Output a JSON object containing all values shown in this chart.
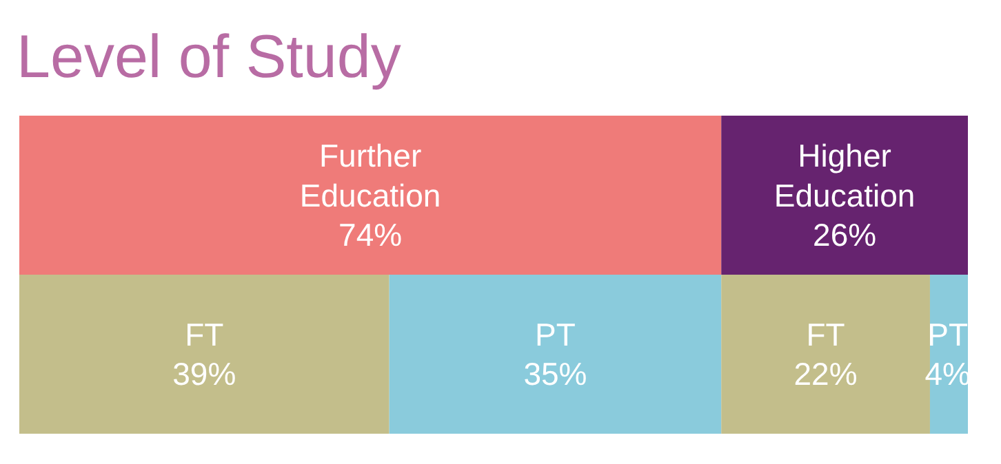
{
  "chart_data": {
    "type": "bar",
    "title": "Level of Study",
    "orientation": "horizontal",
    "stacked": true,
    "categories": [
      null,
      null
    ],
    "xlim": [
      0,
      100
    ],
    "series": [
      {
        "name": "Further Education",
        "color": "#ef7b79",
        "values": [
          74,
          null
        ],
        "value_labels": [
          "74%",
          null
        ]
      },
      {
        "name": "Higher Education",
        "color": "#66236f",
        "values": [
          26,
          null
        ],
        "value_labels": [
          "26%",
          null
        ]
      },
      {
        "name": "FT",
        "color": "#c3be8b",
        "values": [
          null,
          39
        ],
        "value_labels": [
          null,
          "39%"
        ]
      },
      {
        "name": "PT",
        "color": "#8acbdc",
        "values": [
          null,
          35
        ],
        "value_labels": [
          null,
          "35%"
        ]
      },
      {
        "name": "FT",
        "color": "#c3be8b",
        "values": [
          null,
          22
        ],
        "value_labels": [
          null,
          "22%"
        ]
      },
      {
        "name": "PT",
        "color": "#8acbdc",
        "values": [
          null,
          4
        ],
        "value_labels": [
          null,
          "4%"
        ]
      }
    ]
  }
}
